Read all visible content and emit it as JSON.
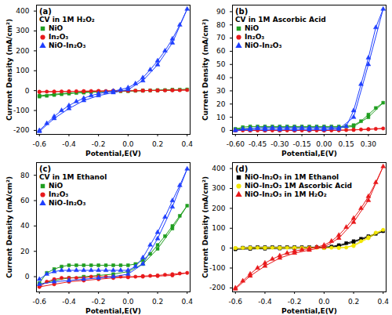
{
  "chart_data": [
    {
      "type": "line",
      "annotations": [
        "(a)"
      ],
      "title": "CV in 1M H₂O₂",
      "x_label": "Potential,E(V)",
      "y_label": "Current Density (mA/cm²)",
      "xlim": [
        -0.62,
        0.42
      ],
      "xticks": [
        -0.6,
        -0.4,
        -0.2,
        {
          "value": 0,
          "label": "0.0"
        },
        0.2,
        0.4
      ],
      "ylim": [
        -220,
        430
      ],
      "yticks": [
        -200,
        -100,
        0,
        100,
        200,
        300,
        400
      ],
      "legend": "upper left",
      "x": [
        -0.6,
        -0.55,
        -0.5,
        -0.45,
        -0.4,
        -0.35,
        -0.3,
        -0.25,
        -0.2,
        -0.15,
        -0.1,
        -0.05,
        0,
        0.05,
        0.1,
        0.15,
        0.2,
        0.25,
        0.3,
        0.35,
        0.4,
        0.3,
        0.2,
        0.1,
        0,
        -0.1,
        -0.2,
        -0.3,
        -0.4,
        -0.5,
        -0.6
      ],
      "series": [
        {
          "name": "NiO",
          "color": "#1f9e1f",
          "marker": "square",
          "values": [
            -30,
            -26,
            -22,
            -18,
            -15,
            -12,
            -10,
            -8,
            -6,
            -5,
            -4,
            -3,
            -2,
            -1,
            0,
            1,
            2,
            3,
            4,
            5,
            6,
            4,
            2,
            0,
            -2,
            -3,
            -5,
            -8,
            -12,
            -18,
            -25
          ]
        },
        {
          "name": "In₂O₃",
          "color": "#e8191b",
          "marker": "circle",
          "values": [
            -6,
            -5,
            -5,
            -4,
            -4,
            -3,
            -3,
            -2,
            -2,
            -2,
            -1,
            -1,
            0,
            0,
            0,
            1,
            1,
            1,
            2,
            2,
            3,
            2,
            1,
            0,
            -1,
            -1,
            -2,
            -3,
            -4,
            -5,
            -6
          ]
        },
        {
          "name": "NiO-In₂O₃",
          "color": "#1f3fff",
          "marker": "triangle",
          "values": [
            -200,
            -165,
            -130,
            -100,
            -75,
            -55,
            -38,
            -25,
            -15,
            -8,
            -2,
            5,
            15,
            35,
            65,
            105,
            150,
            200,
            260,
            330,
            410,
            240,
            130,
            50,
            5,
            -10,
            -25,
            -50,
            -90,
            -140,
            -205
          ]
        }
      ]
    },
    {
      "type": "line",
      "annotations": [
        "(b)"
      ],
      "title": "CV in 1M Ascorbic Acid",
      "x_label": "Potential,E(V)",
      "y_label": "Current Density (mA/cm²)",
      "xlim": [
        -0.62,
        0.42
      ],
      "xticks": [
        {
          "value": -0.6,
          "label": "-0.60"
        },
        {
          "value": -0.45,
          "label": "-0.45"
        },
        {
          "value": -0.3,
          "label": "-0.30"
        },
        {
          "value": -0.15,
          "label": "-0.15"
        },
        {
          "value": 0,
          "label": "0.00"
        },
        {
          "value": 0.15,
          "label": "0.15"
        },
        {
          "value": 0.3,
          "label": "0.30"
        }
      ],
      "ylim": [
        -3,
        95
      ],
      "yticks": [
        0,
        10,
        20,
        30,
        40,
        50,
        60,
        70,
        80,
        90
      ],
      "legend": "upper left",
      "x": [
        -0.6,
        -0.55,
        -0.5,
        -0.45,
        -0.4,
        -0.35,
        -0.3,
        -0.25,
        -0.2,
        -0.15,
        -0.1,
        -0.05,
        0,
        0.05,
        0.1,
        0.15,
        0.2,
        0.25,
        0.3,
        0.35,
        0.4,
        0.3,
        0.2,
        0.1,
        0,
        -0.1,
        -0.2,
        -0.3,
        -0.4,
        -0.5,
        -0.6
      ],
      "series": [
        {
          "name": "NiO",
          "color": "#1f9e1f",
          "marker": "square",
          "values": [
            1,
            2.5,
            3,
            3,
            3,
            3,
            3,
            3,
            3,
            3,
            3,
            3,
            3,
            3,
            3,
            3,
            4,
            7,
            12,
            17,
            21,
            10,
            3,
            2,
            2,
            2,
            2,
            2,
            2,
            1.5,
            1
          ]
        },
        {
          "name": "In₂O₃",
          "color": "#e8191b",
          "marker": "circle",
          "values": [
            0,
            0,
            0,
            0,
            0,
            0,
            0,
            0,
            0,
            0,
            0,
            0,
            0,
            0,
            0.2,
            0.3,
            0.5,
            0.7,
            1,
            1.2,
            1.5,
            0.8,
            0.4,
            0.1,
            0,
            0,
            0,
            0,
            0,
            0,
            0
          ]
        },
        {
          "name": "NiO-In₂O₃",
          "color": "#1f3fff",
          "marker": "triangle",
          "values": [
            0,
            1,
            1.5,
            2,
            2,
            2,
            2,
            2,
            2,
            2,
            2,
            2,
            2,
            2,
            2,
            3,
            15,
            35,
            55,
            78,
            92,
            50,
            10,
            1,
            0.5,
            0.5,
            0.5,
            0.5,
            0.5,
            0.5,
            0.3
          ]
        }
      ]
    },
    {
      "type": "line",
      "annotations": [
        "(c)"
      ],
      "title": "CV in 1M Ethanol",
      "x_label": "Potential,E(V)",
      "y_label": "Current Density (mA/cm²)",
      "xlim": [
        -0.62,
        0.42
      ],
      "xticks": [
        -0.6,
        -0.4,
        -0.2,
        {
          "value": 0,
          "label": "0.0"
        },
        0.2,
        0.4
      ],
      "ylim": [
        -12,
        90
      ],
      "yticks": [
        0,
        20,
        40,
        60,
        80
      ],
      "legend": "upper left",
      "x": [
        -0.6,
        -0.55,
        -0.5,
        -0.45,
        -0.4,
        -0.35,
        -0.3,
        -0.25,
        -0.2,
        -0.15,
        -0.1,
        -0.05,
        0,
        0.05,
        0.1,
        0.15,
        0.2,
        0.25,
        0.3,
        0.35,
        0.4,
        0.3,
        0.2,
        0.1,
        0,
        -0.1,
        -0.2,
        -0.3,
        -0.4,
        -0.5,
        -0.6
      ],
      "series": [
        {
          "name": "NiO",
          "color": "#1f9e1f",
          "marker": "square",
          "values": [
            -5,
            3,
            6,
            8,
            9,
            9,
            9,
            9,
            9,
            9,
            9,
            9,
            9,
            10,
            13,
            18,
            25,
            32,
            40,
            48,
            56,
            38,
            22,
            10,
            4,
            2,
            1,
            0,
            -1,
            -3,
            -6
          ]
        },
        {
          "name": "In₂O₃",
          "color": "#e8191b",
          "marker": "circle",
          "values": [
            -8,
            -4,
            -2,
            -1,
            -1,
            -1,
            -1,
            0,
            0,
            0,
            0,
            0,
            0,
            0,
            0.5,
            0.7,
            1,
            1.5,
            2,
            2.5,
            3,
            1,
            0.5,
            0,
            -0.5,
            -1,
            -2,
            -3,
            -4,
            -6,
            -8
          ]
        },
        {
          "name": "NiO-In₂O₃",
          "color": "#1f3fff",
          "marker": "triangle",
          "values": [
            -2,
            2,
            4,
            5,
            5,
            5,
            5,
            5,
            5,
            5,
            5,
            5,
            5,
            8,
            15,
            25,
            35,
            47,
            60,
            72,
            85,
            55,
            30,
            10,
            2,
            0,
            -1,
            -2,
            -3,
            -4,
            -6
          ]
        }
      ]
    },
    {
      "type": "line",
      "annotations": [
        "(d)"
      ],
      "x_label": "Potential,E(V)",
      "y_label": "Current Density (mA/cm²)",
      "xlim": [
        -0.62,
        0.42
      ],
      "xticks": [
        -0.6,
        -0.4,
        -0.2,
        {
          "value": 0,
          "label": "0.0"
        },
        0.2,
        0.4
      ],
      "ylim": [
        -220,
        430
      ],
      "yticks": [
        -200,
        -100,
        0,
        100,
        200,
        300,
        400
      ],
      "legend": "upper left",
      "x": [
        -0.6,
        -0.55,
        -0.5,
        -0.45,
        -0.4,
        -0.35,
        -0.3,
        -0.25,
        -0.2,
        -0.15,
        -0.1,
        -0.05,
        0,
        0.05,
        0.1,
        0.15,
        0.2,
        0.25,
        0.3,
        0.35,
        0.4,
        0.3,
        0.2,
        0.1,
        0,
        -0.1,
        -0.2,
        -0.3,
        -0.4,
        -0.5,
        -0.6
      ],
      "series": [
        {
          "name": "NiO-In₂O₃ in 1M Ethanol",
          "color": "#000000",
          "marker": "square",
          "values": [
            -2,
            2,
            4,
            5,
            5,
            5,
            5,
            5,
            5,
            5,
            5,
            5,
            5,
            8,
            15,
            25,
            35,
            47,
            60,
            72,
            85,
            55,
            30,
            10,
            2,
            0,
            -1,
            -2,
            -3,
            -4,
            -6
          ]
        },
        {
          "name": "NiO-In₂O₃ 1M Ascorbic Acid",
          "color": "#f2e600",
          "marker": "circle",
          "values": [
            0,
            1,
            1.5,
            2,
            2,
            2,
            2,
            2,
            2,
            2,
            2,
            2,
            2,
            2,
            2,
            3,
            15,
            35,
            55,
            78,
            92,
            50,
            10,
            1,
            0.5,
            0.5,
            0.5,
            0.5,
            0.5,
            0.5,
            0.3
          ]
        },
        {
          "name": "NiO-In₂O₃ in 1M H₂O₂",
          "color": "#e8191b",
          "marker": "triangle",
          "values": [
            -200,
            -165,
            -130,
            -100,
            -75,
            -55,
            -38,
            -25,
            -15,
            -8,
            -2,
            5,
            15,
            35,
            65,
            105,
            150,
            200,
            260,
            330,
            410,
            240,
            130,
            50,
            5,
            -10,
            -25,
            -50,
            -90,
            -140,
            -205
          ]
        }
      ]
    }
  ]
}
